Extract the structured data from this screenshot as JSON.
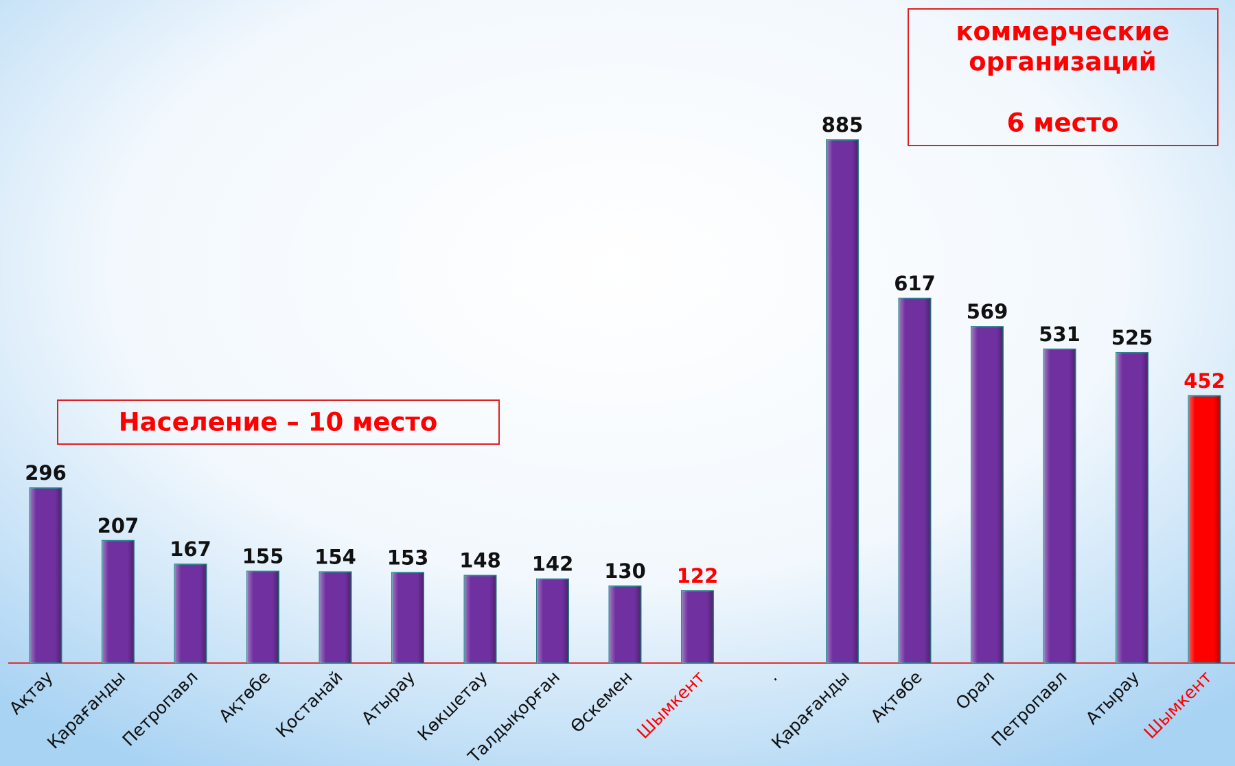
{
  "chart_data": {
    "type": "bar",
    "categories": [
      "Ақтау",
      "Қарағанды",
      "Петропавл",
      "Ақтөбе",
      "Қостанай",
      "Атырау",
      "Көкшетау",
      "Талдықорған",
      "Өскемен",
      "Шымкент",
      ".",
      "Қарағанды",
      "Ақтөбе",
      "Орал",
      "Петропавл",
      "Атырау",
      "Шымкент"
    ],
    "values": [
      296,
      207,
      167,
      155,
      154,
      153,
      148,
      142,
      130,
      122,
      null,
      885,
      617,
      569,
      531,
      525,
      452
    ],
    "colors": [
      "#7030a0",
      "#7030a0",
      "#7030a0",
      "#7030a0",
      "#7030a0",
      "#7030a0",
      "#7030a0",
      "#7030a0",
      "#7030a0",
      "#7030a0",
      "#7030a0",
      "#7030a0",
      "#7030a0",
      "#7030a0",
      "#7030a0",
      "#7030a0",
      "#ff0000"
    ],
    "label_colors": [
      "#111111",
      "#111111",
      "#111111",
      "#111111",
      "#111111",
      "#111111",
      "#111111",
      "#111111",
      "#111111",
      "#ff0000",
      "#111111",
      "#111111",
      "#111111",
      "#111111",
      "#111111",
      "#111111",
      "#ff0000"
    ],
    "annotations": [
      "Население – 10 место",
      "коммерческие",
      "организаций",
      "6 место"
    ]
  }
}
